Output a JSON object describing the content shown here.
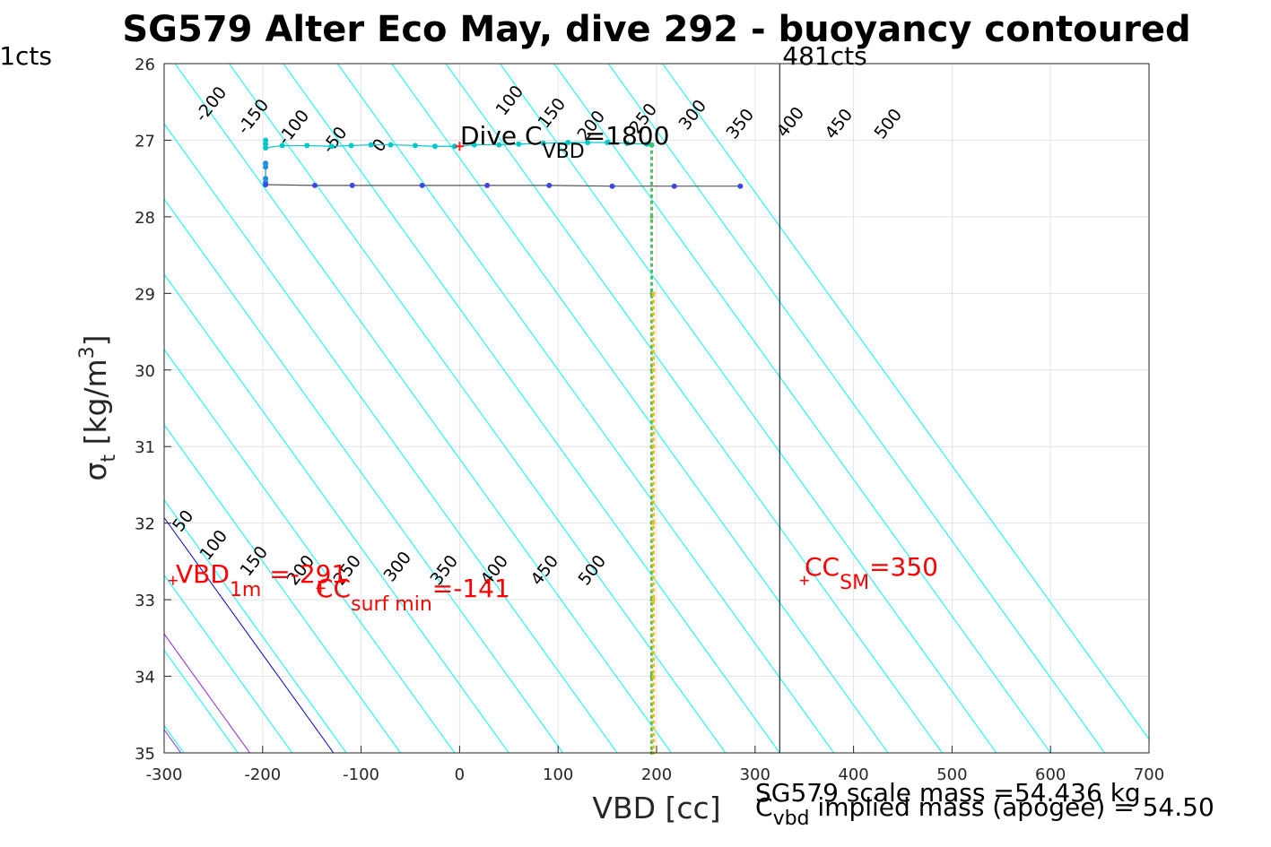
{
  "chart_data": {
    "type": "line",
    "title": "SG579 Alter Eco May, dive 292 - buoyancy contoured",
    "xlabel": "VBD [cc]",
    "ylabel": {
      "main": "σ",
      "sub": "t",
      "rest": " [kg/m",
      "sup": "3",
      "close": "]"
    },
    "xlim": [
      -300,
      700
    ],
    "ylim": [
      26,
      35
    ],
    "y_reversed": true,
    "grid": true,
    "x_ticks": [
      -300,
      -200,
      -100,
      0,
      100,
      200,
      300,
      400,
      500,
      600,
      700
    ],
    "y_ticks": [
      26,
      27,
      28,
      29,
      30,
      31,
      32,
      33,
      34,
      35
    ],
    "contours": {
      "slope_cc_per_kgm3": 56,
      "ref_sigma": 35,
      "cyan_levels": [
        -200,
        -150,
        -100,
        -50,
        0,
        50,
        100,
        150,
        200,
        250,
        300,
        350,
        400,
        450,
        500
      ],
      "cyan_color": "#00ffff",
      "purple_levels": [
        -300,
        -350
      ],
      "purple_color": "#9a1fd9",
      "blue_level_x35": -128,
      "blue_color": "#0000cd",
      "labels_top": [
        "-200",
        "-150",
        "-100",
        "-50",
        "0",
        "100",
        "150",
        "200",
        "250",
        "300",
        "350",
        "400",
        "450",
        "500"
      ],
      "labels_bottom": [
        "50",
        "100",
        "150",
        "200",
        "250",
        "300",
        "350",
        "400",
        "450",
        "500"
      ]
    },
    "vertical_lines": [
      {
        "name": "pump limit",
        "x": 325,
        "label": "481cts",
        "color": "#000000"
      },
      {
        "name": "low limit",
        "x": -345,
        "label": "1cts",
        "color": "#000000"
      }
    ],
    "series": [
      {
        "name": "",
        "color": "#00c8c8",
        "points": [
          [
            -197,
            27.0
          ],
          [
            -197,
            27.05
          ],
          [
            -197,
            27.1
          ],
          [
            -180,
            27.07
          ],
          [
            -155,
            27.07
          ],
          [
            -130,
            27.08
          ],
          [
            -110,
            27.07
          ],
          [
            -90,
            27.06
          ],
          [
            -70,
            27.06
          ],
          [
            -45,
            27.07
          ],
          [
            -25,
            27.08
          ],
          [
            -5,
            27.08
          ],
          [
            15,
            27.06
          ],
          [
            40,
            27.06
          ],
          [
            60,
            27.05
          ],
          [
            85,
            27.04
          ],
          [
            110,
            27.03
          ],
          [
            130,
            27.03
          ],
          [
            150,
            27.03
          ],
          [
            170,
            27.04
          ],
          [
            190,
            27.05
          ],
          [
            195,
            27.06
          ]
        ]
      },
      {
        "name": "",
        "color": "#2090e0",
        "points": [
          [
            -197,
            27.3
          ],
          [
            -197,
            27.35
          ],
          [
            -197,
            27.5
          ],
          [
            -197,
            27.55
          ],
          [
            -197,
            27.58
          ]
        ]
      },
      {
        "name": "",
        "color": "#3b48e8",
        "points": [
          [
            -197,
            27.58
          ],
          [
            -147,
            27.59
          ],
          [
            -109,
            27.59
          ],
          [
            -38,
            27.59
          ],
          [
            28,
            27.59
          ],
          [
            91,
            27.59
          ],
          [
            155,
            27.6
          ],
          [
            218,
            27.6
          ],
          [
            285,
            27.6
          ]
        ]
      },
      {
        "name": "",
        "color": "#55c060",
        "points": [
          [
            195,
            27.05
          ],
          [
            195,
            28
          ],
          [
            195,
            29
          ],
          [
            195,
            30
          ],
          [
            195,
            31
          ],
          [
            195,
            32
          ],
          [
            195,
            33
          ],
          [
            195,
            34
          ],
          [
            195,
            35
          ]
        ]
      },
      {
        "name": "",
        "color": "#f0c020",
        "points": [
          [
            197,
            29
          ],
          [
            197,
            30
          ],
          [
            197,
            31
          ],
          [
            197,
            32
          ],
          [
            197,
            33
          ],
          [
            197,
            34
          ],
          [
            197,
            35
          ]
        ]
      }
    ],
    "markers": [
      {
        "label": "VBD",
        "sub": "1m",
        "tail": " =-291",
        "x": -291,
        "y": 32.75,
        "color": "#ff0000"
      },
      {
        "label": "CC",
        "sub": "surf min",
        "tail": "=-141",
        "x": -141,
        "y": 32.85,
        "color": "#ff0000"
      },
      {
        "label": "CC",
        "sub": "SM",
        "tail": "=350",
        "x": 350,
        "y": 32.75,
        "color": "#ff0000"
      }
    ],
    "dive_marker": {
      "x": 0,
      "y": 27.08,
      "color": "#ff2020"
    },
    "dive_text": {
      "label": "Dive C",
      "sub": "VBD",
      "tail": "=1800"
    },
    "footer": {
      "line1": "SG579 scale mass =54.436 kg",
      "line2_label": "C",
      "line2_sub": "vbd",
      "line2_tail": " implied mass (apogee) = 54.50"
    }
  }
}
